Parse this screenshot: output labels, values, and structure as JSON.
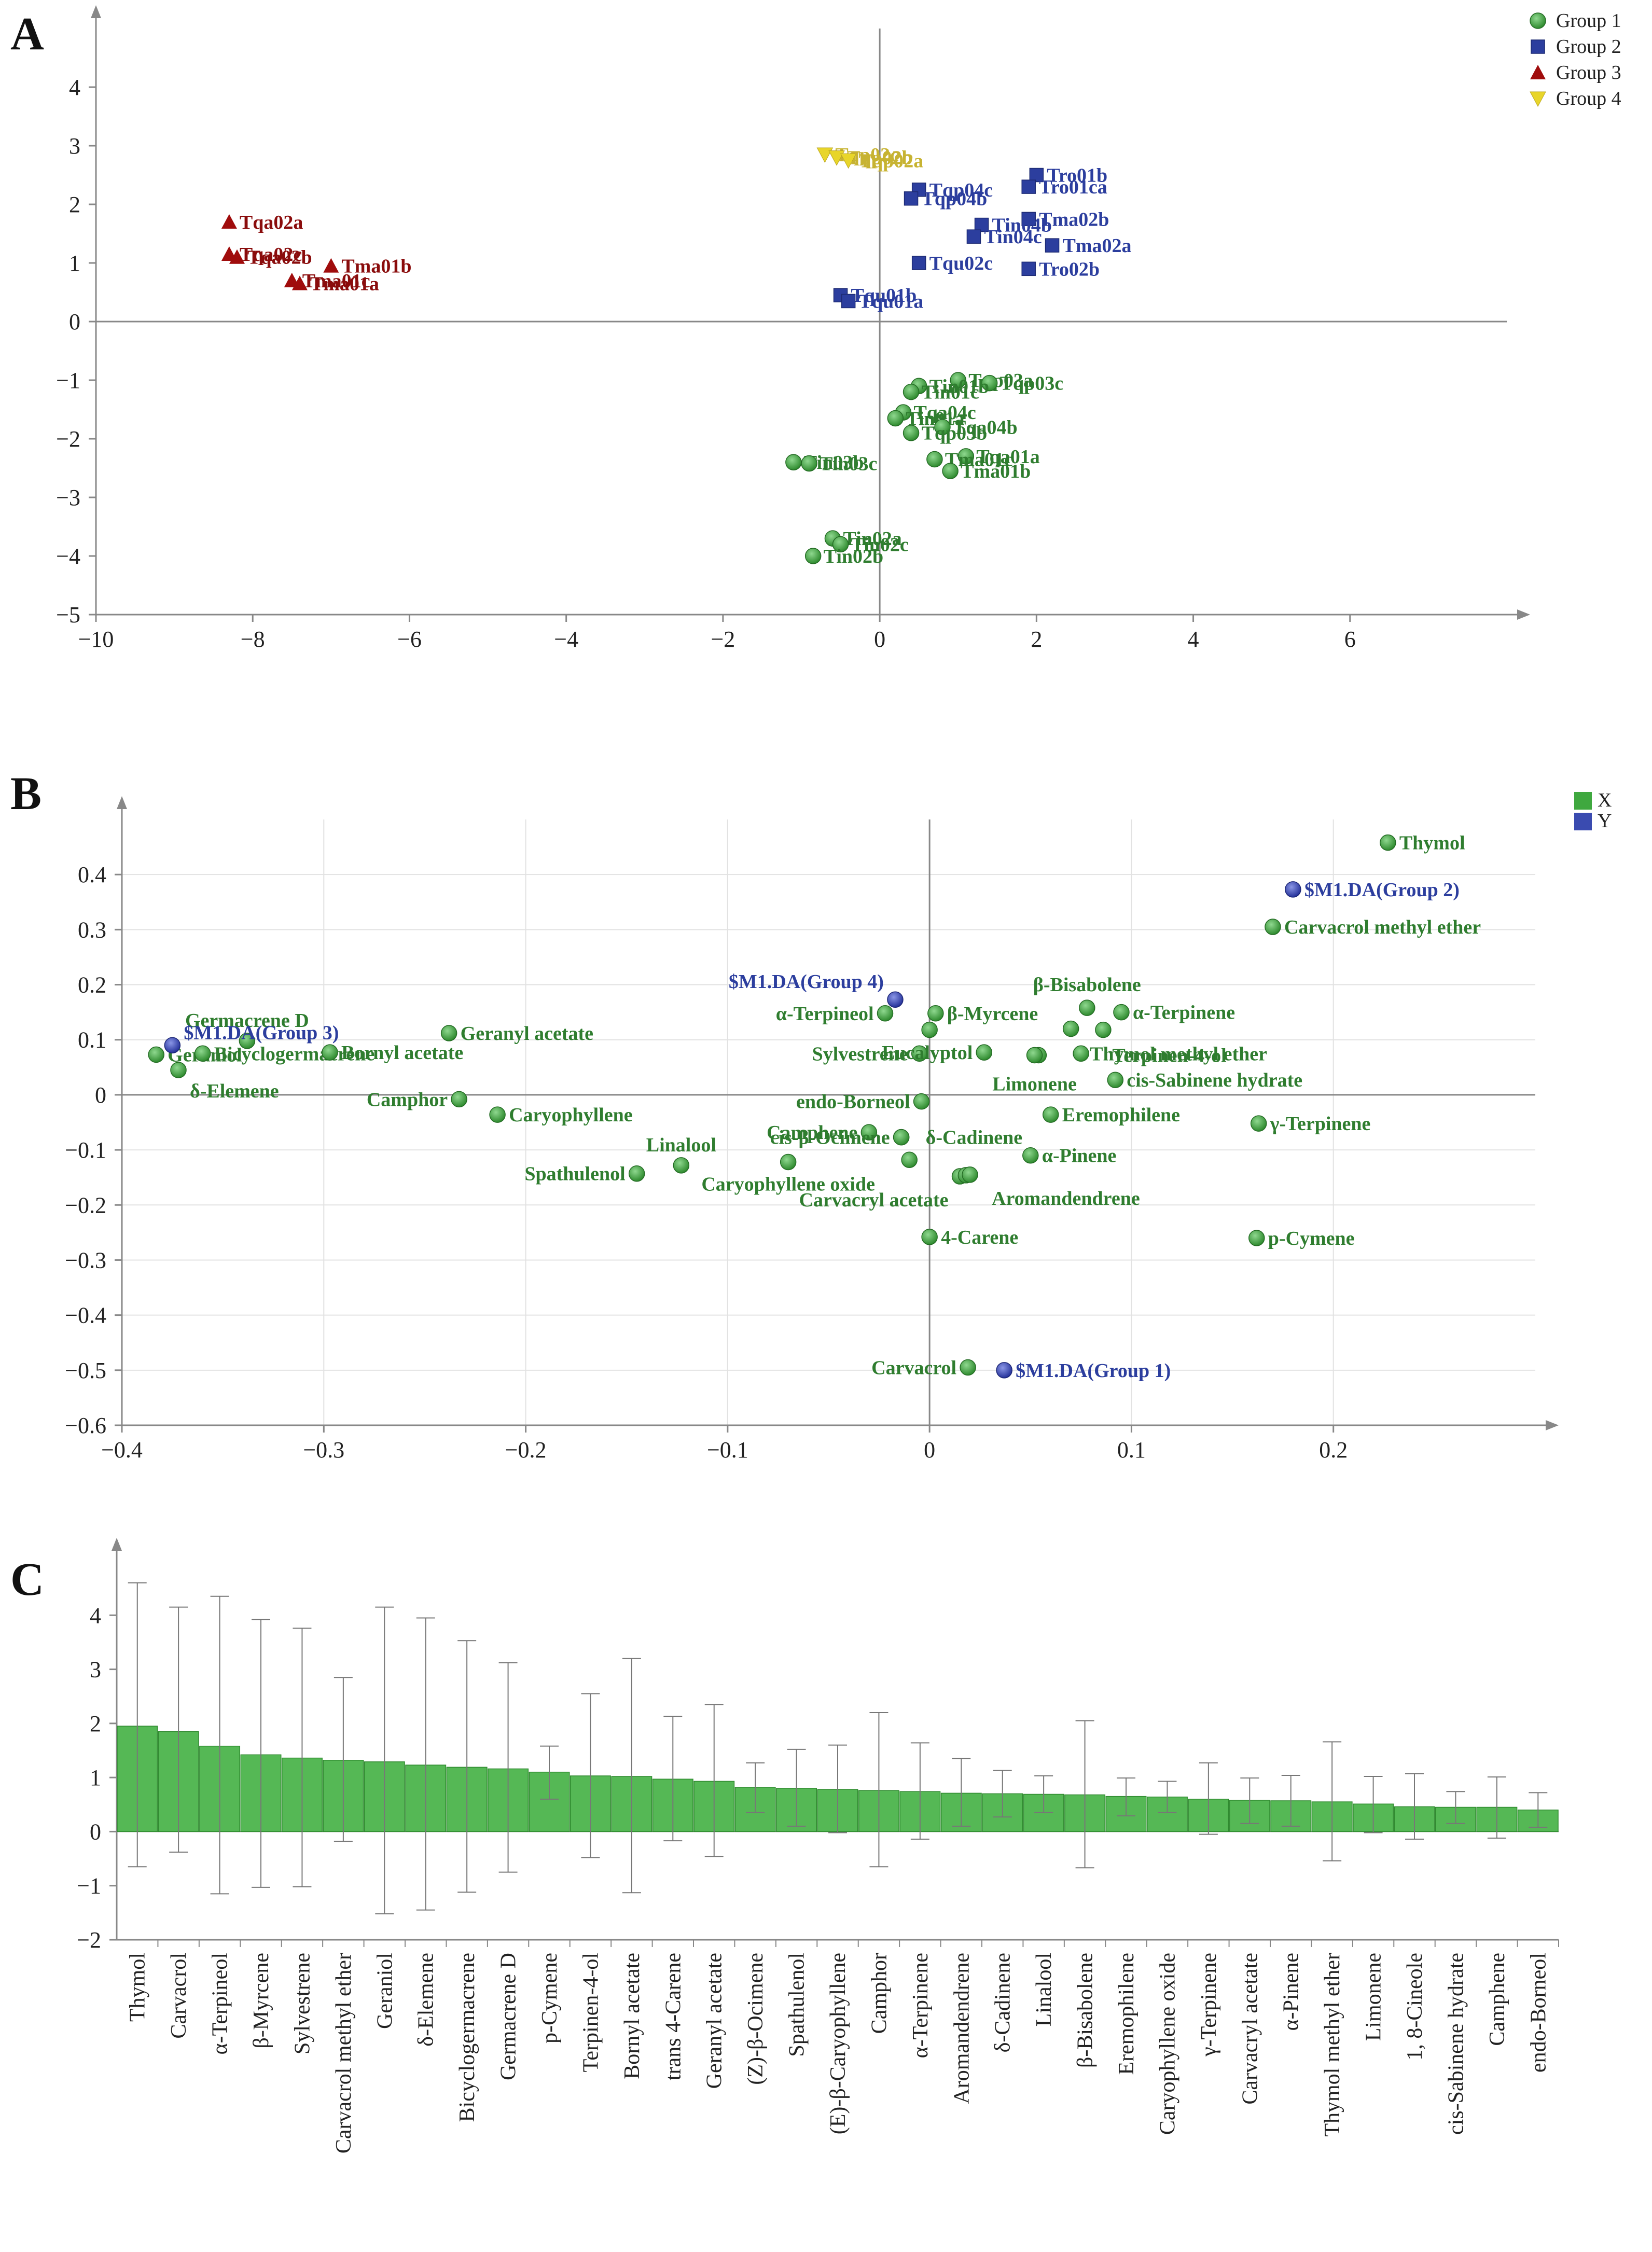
{
  "panels": {
    "a": "A",
    "b": "B",
    "c": "C"
  },
  "colors": {
    "group1": "#3fa83f",
    "group2": "#2c3e9e",
    "group3": "#a00c0c",
    "group4": "#e8d52a",
    "label1": "#2f7d2f",
    "label2": "#2c3e9e",
    "label3": "#8a0c0c",
    "label4": "#c7b332",
    "yload": "#3a4bb0",
    "bar": "#55b855"
  },
  "chart_data": [
    {
      "id": "A",
      "type": "scatter",
      "title": "",
      "xlim": [
        -10,
        8
      ],
      "ylim": [
        -5,
        5
      ],
      "xticks": [
        -10,
        -8,
        -6,
        -4,
        -2,
        0,
        2,
        4,
        6
      ],
      "yticks": [
        -5,
        -4,
        -3,
        -2,
        -1,
        0,
        1,
        2,
        3,
        4
      ],
      "xtick_labels": [
        "−10",
        "−8",
        "−6",
        "−4",
        "−2",
        "0",
        "2",
        "4",
        "6"
      ],
      "ytick_labels": [
        "−5",
        "−4",
        "−3",
        "−2",
        "−1",
        "0",
        "1",
        "2",
        "3",
        "4"
      ],
      "legend": [
        {
          "name": "Group 1",
          "marker": "circle",
          "color": "#3fa83f"
        },
        {
          "name": "Group 2",
          "marker": "square",
          "color": "#2c3e9e"
        },
        {
          "name": "Group 3",
          "marker": "triangle",
          "color": "#a00c0c"
        },
        {
          "name": "Group 4",
          "marker": "triangle-down",
          "color": "#e8d52a"
        }
      ],
      "series": [
        {
          "name": "Group 1",
          "points": [
            {
              "label": "Tqp03a",
              "x": 1.0,
              "y": -1.0
            },
            {
              "label": "Tqp03c",
              "x": 1.4,
              "y": -1.05
            },
            {
              "label": "Tin01b",
              "x": 0.5,
              "y": -1.1
            },
            {
              "label": "Tin01c",
              "x": 0.4,
              "y": -1.2
            },
            {
              "label": "Tqa04c",
              "x": 0.3,
              "y": -1.55
            },
            {
              "label": "Tin01a",
              "x": 0.2,
              "y": -1.65
            },
            {
              "label": "Tqa04b",
              "x": 0.8,
              "y": -1.8
            },
            {
              "label": "Tqp03b",
              "x": 0.4,
              "y": -1.9
            },
            {
              "label": "Tqa01a",
              "x": 1.1,
              "y": -2.3
            },
            {
              "label": "Tma01c",
              "x": 0.7,
              "y": -2.35
            },
            {
              "label": "Tma01b",
              "x": 0.9,
              "y": -2.55
            },
            {
              "label": "Tin03b",
              "x": -1.1,
              "y": -2.4
            },
            {
              "label": "Tin03c",
              "x": -0.9,
              "y": -2.42
            },
            {
              "label": "Tin02a",
              "x": -0.6,
              "y": -3.7
            },
            {
              "label": "Tin02c",
              "x": -0.5,
              "y": -3.8
            },
            {
              "label": "Tin02b",
              "x": -0.85,
              "y": -4.0
            }
          ]
        },
        {
          "name": "Group 2",
          "points": [
            {
              "label": "Tro01b",
              "x": 2.0,
              "y": 2.5
            },
            {
              "label": "Tro01ca",
              "x": 1.9,
              "y": 2.3
            },
            {
              "label": "Tqp04c",
              "x": 0.5,
              "y": 2.25
            },
            {
              "label": "Tqp04b",
              "x": 0.4,
              "y": 2.1
            },
            {
              "label": "Tma02b",
              "x": 1.9,
              "y": 1.75
            },
            {
              "label": "Tin04b",
              "x": 1.3,
              "y": 1.65
            },
            {
              "label": "Tma02a",
              "x": 2.2,
              "y": 1.3
            },
            {
              "label": "Tin04c",
              "x": 1.2,
              "y": 1.45
            },
            {
              "label": "Tqu02c",
              "x": 0.5,
              "y": 1.0
            },
            {
              "label": "Tro02b",
              "x": 1.9,
              "y": 0.9
            },
            {
              "label": "Tqu01b",
              "x": -0.5,
              "y": 0.45
            },
            {
              "label": "Tqu01a",
              "x": -0.4,
              "y": 0.35
            }
          ]
        },
        {
          "name": "Group 3",
          "points": [
            {
              "label": "Tqa02a",
              "x": -8.3,
              "y": 1.7
            },
            {
              "label": "Tqa02b",
              "x": -8.2,
              "y": 1.1
            },
            {
              "label": "Tqa02c",
              "x": -8.3,
              "y": 1.15
            },
            {
              "label": "Tma01b",
              "x": -7.0,
              "y": 0.95
            },
            {
              "label": "Tma01c",
              "x": -7.5,
              "y": 0.7
            },
            {
              "label": "Tma01a",
              "x": -7.4,
              "y": 0.65
            }
          ]
        },
        {
          "name": "Group 4",
          "points": [
            {
              "label": "Tqp02c",
              "x": -0.7,
              "y": 2.85
            },
            {
              "label": "Tqp02b",
              "x": -0.55,
              "y": 2.8
            },
            {
              "label": "Tqp02a",
              "x": -0.4,
              "y": 2.75
            }
          ]
        }
      ]
    },
    {
      "id": "B",
      "type": "scatter",
      "title": "",
      "xlim": [
        -0.4,
        0.3
      ],
      "ylim": [
        -0.6,
        0.5
      ],
      "xticks": [
        -0.4,
        -0.3,
        -0.2,
        -0.1,
        0,
        0.1,
        0.2
      ],
      "yticks": [
        -0.6,
        -0.5,
        -0.4,
        -0.3,
        -0.2,
        -0.1,
        0,
        0.1,
        0.2,
        0.3,
        0.4
      ],
      "xtick_labels": [
        "−0.4",
        "−0.3",
        "−0.2",
        "−0.1",
        "0",
        "0.1",
        "0.2"
      ],
      "ytick_labels": [
        "−0.6",
        "−0.5",
        "−0.4",
        "−0.3",
        "−0.2",
        "−0.1",
        "0",
        "0.1",
        "0.2",
        "0.3",
        "0.4"
      ],
      "legend": [
        {
          "name": "X",
          "marker": "square",
          "color": "#3fa83f"
        },
        {
          "name": "Y",
          "marker": "square",
          "color": "#3a4bb0"
        }
      ],
      "series": [
        {
          "name": "X",
          "points": [
            {
              "label": "Thymol",
              "x": 0.227,
              "y": 0.458,
              "anchor": "start"
            },
            {
              "label": "Carvacrol methyl ether",
              "x": 0.17,
              "y": 0.305,
              "anchor": "start"
            },
            {
              "label": "β-Bisabolene",
              "x": 0.078,
              "y": 0.158,
              "anchor": "middle",
              "dy": -45
            },
            {
              "label": "α-Terpinene",
              "x": 0.095,
              "y": 0.15,
              "anchor": "start"
            },
            {
              "label": "α-Terpineol",
              "x": -0.022,
              "y": 0.148,
              "anchor": "end"
            },
            {
              "label": "β-Myrcene",
              "x": 0.003,
              "y": 0.148,
              "anchor": "start"
            },
            {
              "label": "",
              "x": 0.0,
              "y": 0.118
            },
            {
              "label": "",
              "x": 0.07,
              "y": 0.12
            },
            {
              "label": "",
              "x": 0.086,
              "y": 0.118
            },
            {
              "label": "Sylvestrene",
              "x": -0.005,
              "y": 0.075,
              "anchor": "end"
            },
            {
              "label": "Eucalyptol",
              "x": 0.027,
              "y": 0.077,
              "anchor": "end"
            },
            {
              "label": "Terpinen-4-ol",
              "x": 0.054,
              "y": 0.072,
              "anchor": "start",
              "dx": 120
            },
            {
              "label": "Thymol methyl ether",
              "x": 0.075,
              "y": 0.075,
              "anchor": "start",
              "dx": -5
            },
            {
              "label": "Limonene",
              "x": 0.052,
              "y": 0.072,
              "anchor": "middle",
              "dy": 55
            },
            {
              "label": "cis-Sabinene hydrate",
              "x": 0.092,
              "y": 0.027,
              "anchor": "start"
            },
            {
              "label": "Germacrene D",
              "x": -0.338,
              "y": 0.098,
              "anchor": "middle",
              "dy": -40
            },
            {
              "label": "Geraniol",
              "x": -0.383,
              "y": 0.073,
              "anchor": "start"
            },
            {
              "label": "Bicyclogermacrene",
              "x": -0.36,
              "y": 0.075,
              "anchor": "start"
            },
            {
              "label": "δ-Elemene",
              "x": -0.372,
              "y": 0.045,
              "anchor": "start",
              "dy": 40
            },
            {
              "label": "Geranyl acetate",
              "x": -0.238,
              "y": 0.112,
              "anchor": "start"
            },
            {
              "label": "Bornyl acetate",
              "x": -0.297,
              "y": 0.077,
              "anchor": "start"
            },
            {
              "label": "Camphor",
              "x": -0.233,
              "y": -0.008,
              "anchor": "end"
            },
            {
              "label": "Caryophyllene",
              "x": -0.214,
              "y": -0.036,
              "anchor": "start"
            },
            {
              "label": "endo-Borneol",
              "x": -0.004,
              "y": -0.012,
              "anchor": "end"
            },
            {
              "label": "Eremophilene",
              "x": 0.06,
              "y": -0.036,
              "anchor": "start"
            },
            {
              "label": "γ-Terpinene",
              "x": 0.163,
              "y": -0.052,
              "anchor": "start"
            },
            {
              "label": "Camphene",
              "x": -0.03,
              "y": -0.068,
              "anchor": "end"
            },
            {
              "label": "cis-β-Ocimene",
              "x": -0.014,
              "y": -0.077,
              "anchor": "end"
            },
            {
              "label": "δ-Cadinene",
              "x": -0.014,
              "y": -0.077,
              "anchor": "start",
              "dx": 25
            },
            {
              "label": "Linalool",
              "x": -0.123,
              "y": -0.128,
              "anchor": "middle",
              "dy": -40
            },
            {
              "label": "Spathulenol",
              "x": -0.145,
              "y": -0.143,
              "anchor": "end"
            },
            {
              "label": "Caryophyllene oxide",
              "x": -0.07,
              "y": -0.122,
              "anchor": "middle",
              "dy": 42
            },
            {
              "label": "",
              "x": -0.01,
              "y": -0.118
            },
            {
              "label": "Carvacryl acetate",
              "x": 0.015,
              "y": -0.148,
              "anchor": "end",
              "dy": 45
            },
            {
              "label": "",
              "x": 0.018,
              "y": -0.146
            },
            {
              "label": "Aromandendrene",
              "x": 0.02,
              "y": -0.145,
              "anchor": "start",
              "dx": 20,
              "dy": 45
            },
            {
              "label": "α-Pinene",
              "x": 0.05,
              "y": -0.11,
              "anchor": "start"
            },
            {
              "label": "4-Carene",
              "x": 0.0,
              "y": -0.258,
              "anchor": "start"
            },
            {
              "label": "p-Cymene",
              "x": 0.162,
              "y": -0.26,
              "anchor": "start"
            },
            {
              "label": "Carvacrol",
              "x": 0.019,
              "y": -0.495,
              "anchor": "end"
            }
          ]
        },
        {
          "name": "Y",
          "points": [
            {
              "label": "$M1.DA(Group 2)",
              "x": 0.18,
              "y": 0.373,
              "anchor": "start"
            },
            {
              "label": "$M1.DA(Group 4)",
              "x": -0.017,
              "y": 0.173,
              "anchor": "end",
              "dy": -35
            },
            {
              "label": "$M1.DA(Group 3)",
              "x": -0.375,
              "y": 0.09,
              "anchor": "start",
              "dy": -25
            },
            {
              "label": "$M1.DA(Group 1)",
              "x": 0.037,
              "y": -0.5,
              "anchor": "start"
            }
          ]
        }
      ]
    },
    {
      "id": "C",
      "type": "bar",
      "title": "",
      "ylim": [
        -2,
        5
      ],
      "yticks": [
        -2,
        -1,
        0,
        1,
        2,
        3,
        4
      ],
      "ytick_labels": [
        "−2",
        "−1",
        "0",
        "1",
        "2",
        "3",
        "4"
      ],
      "categories": [
        "Thymol",
        "Carvacrol",
        "α-Terpineol",
        "β-Myrcene",
        "Sylvestrene",
        "Carvacrol methyl ether",
        "Geraniol",
        "δ-Elemene",
        "Bicyclogermacrene",
        "Germacrene D",
        "p-Cymene",
        "Terpinen-4-ol",
        "Bornyl acetate",
        "trans 4-Carene",
        "Geranyl acetate",
        "(Z)-β-Ocimene",
        "Spathulenol",
        "(E)-β-Caryophyllene",
        "Camphor",
        "α-Terpinene",
        "Aromandendrene",
        "δ-Cadinene",
        "Linalool",
        "β-Bisabolene",
        "Eremophilene",
        "Caryophyllene oxide",
        "γ-Terpinene",
        "Carvacryl acetate",
        "α-Pinene",
        "Thymol methyl ether",
        "Limonene",
        "1, 8-Cineole",
        "cis-Sabinene hydrate",
        "Camphene",
        "endo-Borneol"
      ],
      "values": [
        1.95,
        1.85,
        1.58,
        1.42,
        1.36,
        1.32,
        1.29,
        1.23,
        1.19,
        1.16,
        1.1,
        1.03,
        1.02,
        0.97,
        0.93,
        0.82,
        0.8,
        0.78,
        0.76,
        0.74,
        0.71,
        0.7,
        0.69,
        0.68,
        0.65,
        0.64,
        0.6,
        0.58,
        0.57,
        0.55,
        0.51,
        0.46,
        0.45,
        0.45,
        0.4
      ],
      "err_low": [
        -0.65,
        -0.38,
        -1.15,
        -1.03,
        -1.02,
        -0.18,
        -1.52,
        -1.45,
        -1.12,
        -0.75,
        0.6,
        -0.48,
        -1.13,
        -0.17,
        -0.46,
        0.35,
        0.1,
        -0.02,
        -0.65,
        -0.14,
        0.1,
        0.27,
        0.35,
        -0.67,
        0.29,
        0.35,
        -0.05,
        0.15,
        0.1,
        -0.54,
        -0.02,
        -0.14,
        0.15,
        -0.12,
        0.08
      ],
      "err_high": [
        4.6,
        4.15,
        4.35,
        3.92,
        3.76,
        2.85,
        4.15,
        3.95,
        3.53,
        3.12,
        1.58,
        2.55,
        3.2,
        2.13,
        2.35,
        1.27,
        1.52,
        1.6,
        2.2,
        1.64,
        1.35,
        1.13,
        1.03,
        2.05,
        0.99,
        0.93,
        1.27,
        0.99,
        1.04,
        1.66,
        1.02,
        1.07,
        0.74,
        1.01,
        0.72
      ]
    }
  ]
}
